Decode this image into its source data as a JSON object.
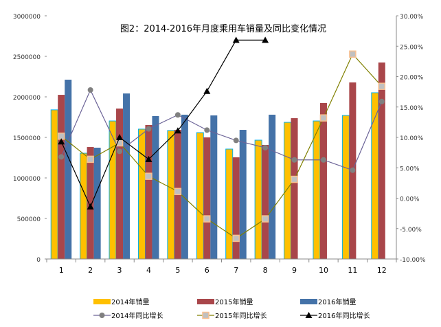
{
  "chart_data": {
    "type": "bar",
    "title": "图2：2014-2016年月度乘用车销量及同比变化情况",
    "categories": [
      "1",
      "2",
      "3",
      "4",
      "5",
      "6",
      "7",
      "8",
      "9",
      "10",
      "11",
      "12"
    ],
    "y_left": {
      "range": [
        0,
        3000000
      ],
      "ticks": [
        "0",
        "500000",
        "1000000",
        "1500000",
        "2000000",
        "2500000",
        "3000000"
      ]
    },
    "y_right": {
      "range": [
        -10,
        30
      ],
      "unit": "%",
      "ticks": [
        "-10.00%",
        "-5.00%",
        "0.00%",
        "5.00%",
        "10.00%",
        "15.00%",
        "20.00%",
        "25.00%",
        "30.00%"
      ]
    },
    "grid": false,
    "legend_position": "bottom",
    "bar_series": [
      {
        "name": "2014年销量",
        "color": "#FFC000",
        "border": "#00B0F0",
        "values": [
          1840000,
          1305000,
          1703000,
          1602000,
          1585000,
          1559000,
          1356000,
          1466000,
          1686000,
          1703000,
          1771000,
          2051000
        ]
      },
      {
        "name": "2015年销量",
        "color": "#A9464A",
        "values": [
          2025000,
          1381000,
          1856000,
          1653000,
          1593000,
          1500000,
          1254000,
          1407000,
          1737000,
          1924000,
          2178000,
          2424000
        ]
      },
      {
        "name": "2016年销量",
        "color": "#4472A8",
        "values": [
          2212000,
          1373000,
          2042000,
          1763000,
          1780000,
          1771000,
          1593000,
          1780000,
          null,
          null,
          null,
          null
        ]
      }
    ],
    "line_series": [
      {
        "name": "2014年同比增长",
        "color": "#6B6397",
        "marker": "circle",
        "values": [
          6.8,
          17.8,
          7.7,
          11.4,
          13.7,
          11.2,
          9.5,
          8.3,
          6.3,
          6.3,
          4.6,
          15.9
        ]
      },
      {
        "name": "2015年同比增长",
        "color": "#808000",
        "marker": "square",
        "values": [
          10.2,
          6.4,
          9.1,
          3.6,
          1.1,
          -3.4,
          -6.6,
          -3.4,
          3.1,
          13.2,
          23.7,
          18.4
        ]
      },
      {
        "name": "2016年同比增长",
        "color": "#000000",
        "marker": "triangle",
        "values": [
          9.3,
          -1.4,
          10.0,
          6.4,
          11.1,
          17.6,
          26.0,
          26.0,
          null,
          null,
          null,
          null
        ]
      }
    ]
  }
}
